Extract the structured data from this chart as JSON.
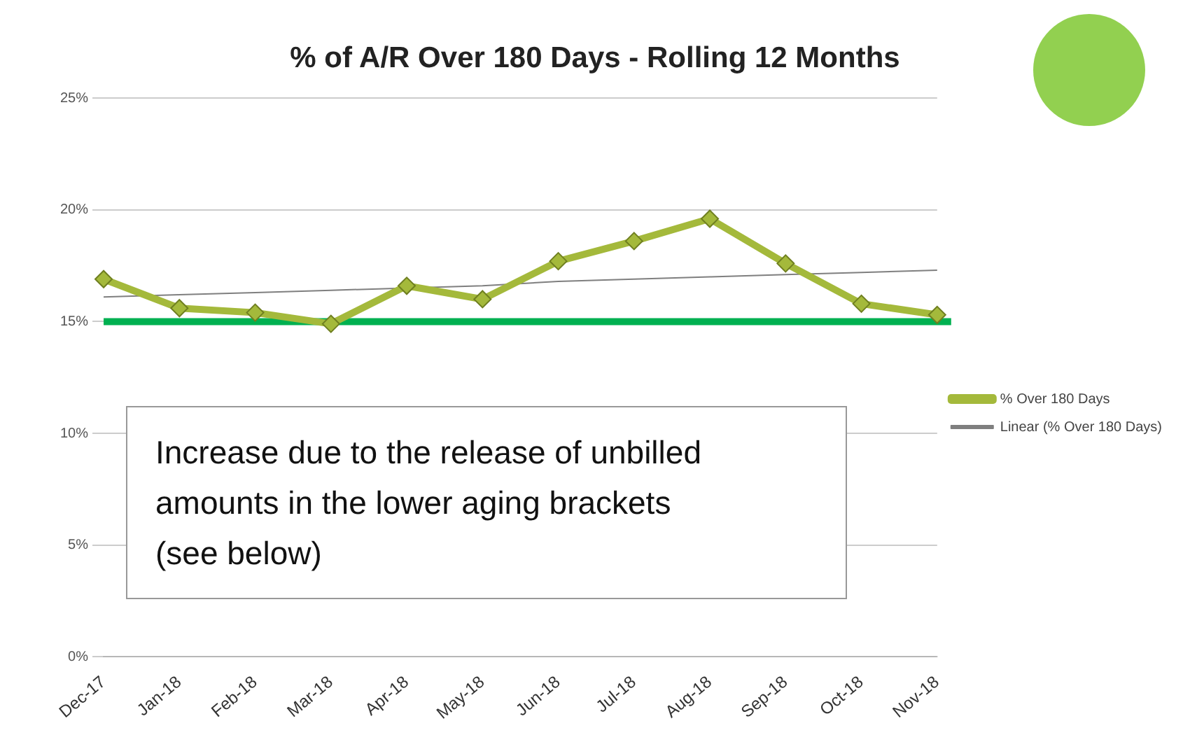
{
  "chart_data": {
    "type": "line",
    "title": "% of A/R Over 180 Days - Rolling 12 Months",
    "categories": [
      "Dec-17",
      "Jan-18",
      "Feb-18",
      "Mar-18",
      "Apr-18",
      "May-18",
      "Jun-18",
      "Jul-18",
      "Aug-18",
      "Sep-18",
      "Oct-18",
      "Nov-18"
    ],
    "series": [
      {
        "name": "% Over 180 Days",
        "color": "#a4b93b",
        "marker": "diamond",
        "values": [
          16.9,
          15.6,
          15.4,
          14.9,
          16.6,
          16.0,
          17.7,
          18.6,
          19.6,
          17.6,
          15.8,
          15.3
        ]
      },
      {
        "name": "Linear (% Over 180 Days)",
        "color": "#7f7f7f",
        "marker": "none",
        "values": [
          16.1,
          16.2,
          16.3,
          16.4,
          16.5,
          16.6,
          16.8,
          16.9,
          17.0,
          17.1,
          17.2,
          17.3
        ]
      }
    ],
    "ylim": [
      0,
      25
    ],
    "yticks": [
      {
        "value": 0,
        "label": "0%"
      },
      {
        "value": 5,
        "label": "5%"
      },
      {
        "value": 10,
        "label": "10%"
      },
      {
        "value": 15,
        "label": "15%"
      },
      {
        "value": 20,
        "label": "20%"
      },
      {
        "value": 25,
        "label": "25%"
      }
    ],
    "grid": "y",
    "legend": "right",
    "ref_lines": [
      {
        "axis": "y",
        "value": 15,
        "color": "#00b050"
      }
    ],
    "annotations": [
      "Increase due to the release of unbilled amounts in the lower aging brackets (see below)"
    ]
  }
}
